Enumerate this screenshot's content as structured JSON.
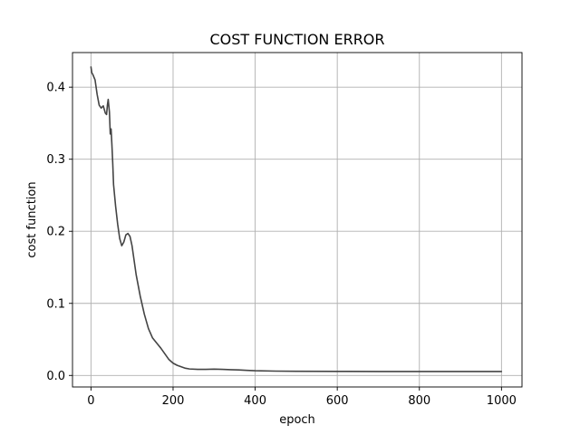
{
  "chart_data": {
    "type": "line",
    "title": "COST FUNCTION ERROR",
    "xlabel": "epoch",
    "ylabel": "cost function",
    "xlim": [
      -45,
      1050
    ],
    "ylim": [
      -0.016,
      0.448
    ],
    "xticks": [
      0,
      200,
      400,
      600,
      800,
      1000
    ],
    "yticks": [
      0.0,
      0.1,
      0.2,
      0.3,
      0.4
    ],
    "xtick_labels": [
      "0",
      "200",
      "400",
      "600",
      "800",
      "1000"
    ],
    "ytick_labels": [
      "0.0",
      "0.1",
      "0.2",
      "0.3",
      "0.4"
    ],
    "grid": true,
    "line_color": "#444444",
    "series": [
      {
        "x": [
          0,
          2,
          5,
          10,
          15,
          20,
          25,
          30,
          35,
          38,
          40,
          42,
          45,
          47,
          49,
          51,
          53,
          55,
          60,
          65,
          70,
          75,
          80,
          85,
          90,
          95,
          100,
          110,
          120,
          130,
          140,
          150,
          160,
          170,
          180,
          190,
          200,
          210,
          220,
          230,
          240,
          260,
          280,
          300,
          320,
          340,
          360,
          380,
          400,
          450,
          500,
          600,
          700,
          800,
          900,
          1000
        ],
        "y": [
          0.428,
          0.42,
          0.417,
          0.41,
          0.39,
          0.375,
          0.371,
          0.374,
          0.364,
          0.362,
          0.375,
          0.383,
          0.365,
          0.335,
          0.342,
          0.32,
          0.295,
          0.265,
          0.235,
          0.21,
          0.19,
          0.18,
          0.185,
          0.195,
          0.197,
          0.193,
          0.18,
          0.14,
          0.11,
          0.085,
          0.065,
          0.052,
          0.045,
          0.038,
          0.03,
          0.022,
          0.017,
          0.014,
          0.012,
          0.01,
          0.009,
          0.0085,
          0.0085,
          0.0088,
          0.0085,
          0.008,
          0.0077,
          0.007,
          0.0065,
          0.006,
          0.0058,
          0.0056,
          0.0055,
          0.0055,
          0.0055,
          0.0055
        ]
      }
    ]
  }
}
